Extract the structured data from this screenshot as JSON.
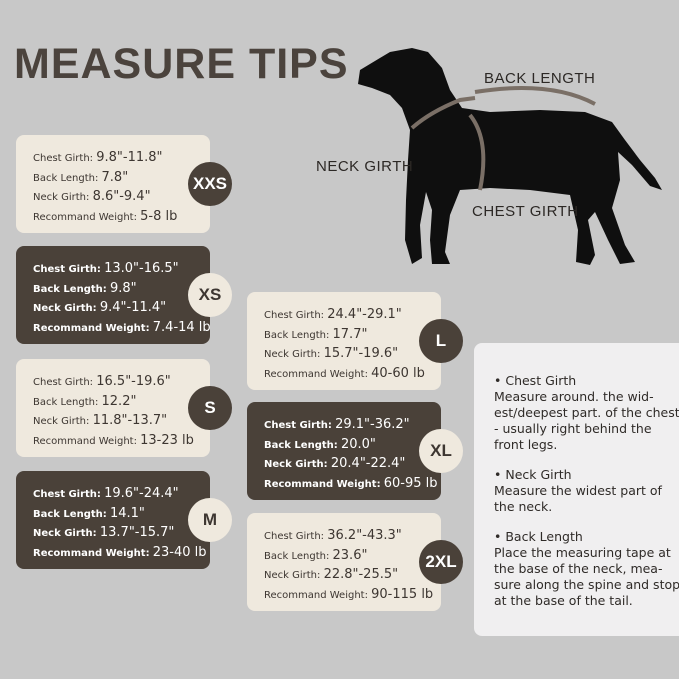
{
  "title": "MEASURE TIPS",
  "diagram": {
    "back_length": "BACK LENGTH",
    "neck_girth": "NECK GIRTH",
    "chest_girth": "CHEST GIRTH"
  },
  "labels": {
    "chest": "Chest Girth:",
    "back": "Back Length:",
    "neck": "Neck Girth:",
    "weight": "Recommand Weight:"
  },
  "sizes": [
    {
      "size": "XXS",
      "chest": "9.8\"-11.8\"",
      "back": "7.8\"",
      "neck": "8.6\"-9.4\"",
      "weight": "5-8 lb",
      "theme": "light"
    },
    {
      "size": "XS",
      "chest": "13.0\"-16.5\"",
      "back": "9.8\"",
      "neck": "9.4\"-11.4\"",
      "weight": "7.4-14 lb",
      "theme": "dark"
    },
    {
      "size": "S",
      "chest": "16.5\"-19.6\"",
      "back": "12.2\"",
      "neck": "11.8\"-13.7\"",
      "weight": "13-23 lb",
      "theme": "light"
    },
    {
      "size": "M",
      "chest": "19.6\"-24.4\"",
      "back": "14.1\"",
      "neck": "13.7\"-15.7\"",
      "weight": "23-40 lb",
      "theme": "dark"
    },
    {
      "size": "L",
      "chest": "24.4\"-29.1\"",
      "back": "17.7\"",
      "neck": "15.7\"-19.6\"",
      "weight": "40-60 lb",
      "theme": "light"
    },
    {
      "size": "XL",
      "chest": "29.1\"-36.2\"",
      "back": "20.0\"",
      "neck": "20.4\"-22.4\"",
      "weight": "60-95 lb",
      "theme": "dark"
    },
    {
      "size": "2XL",
      "chest": "36.2\"-43.3\"",
      "back": "23.6\"",
      "neck": "22.8\"-25.5\"",
      "weight": "90-115 lb",
      "theme": "light"
    }
  ],
  "tips": [
    {
      "heading": "• Chest Girth",
      "text": "Measure around. the wid-est/deepest part. of the chest - usually right behind the front legs."
    },
    {
      "heading": "• Neck Girth",
      "text": "Measure the widest part of the neck."
    },
    {
      "heading": "• Back Length",
      "text": "Place the measuring tape at the base of the neck, mea-sure along the spine and stop at the base of the tail."
    }
  ],
  "colors": {
    "background": "#c8c8c8",
    "light_card": "#efe9de",
    "dark_card": "#4a4139"
  }
}
